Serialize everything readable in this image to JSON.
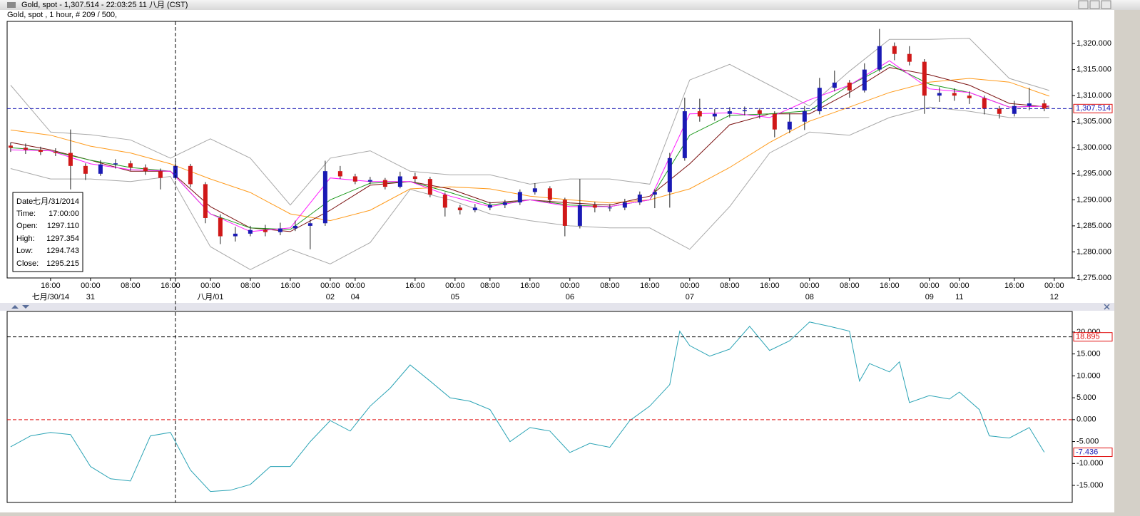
{
  "window": {
    "title": "Gold, spot - 1,307.514 - 22:03:25  11 八月 (CST)",
    "subtitle": "Gold, spot , 1 hour, # 209 / 500,"
  },
  "info_box": {
    "rows": [
      [
        "Date:",
        "七月/31/2014"
      ],
      [
        "Time:",
        "17:00:00"
      ],
      [
        "Open:",
        "1297.110"
      ],
      [
        "High:",
        "1297.354"
      ],
      [
        "Low:",
        "1294.743"
      ],
      [
        "Close:",
        "1295.215"
      ]
    ]
  },
  "chart_data": [
    {
      "type": "candlestick",
      "up_color": "#1a1ab4",
      "down_color": "#d01818",
      "xlim": [
        -0.7,
        212.6
      ],
      "ylim": [
        1275,
        1324.25
      ],
      "crosshair_x": 33,
      "xticks": [
        {
          "value": 8,
          "label": "16:00"
        },
        {
          "value": 16,
          "label": "00:00"
        },
        {
          "value": 24,
          "label": "08:00"
        },
        {
          "value": 32,
          "label": "16:00"
        },
        {
          "value": 40,
          "label": "00:00"
        },
        {
          "value": 48,
          "label": "08:00"
        },
        {
          "value": 56,
          "label": "16:00"
        },
        {
          "value": 64,
          "label": "00:00"
        },
        {
          "value": 69,
          "label": "00:00"
        },
        {
          "value": 81,
          "label": "16:00"
        },
        {
          "value": 89,
          "label": "00:00"
        },
        {
          "value": 96,
          "label": "08:00"
        },
        {
          "value": 104,
          "label": "16:00"
        },
        {
          "value": 112,
          "label": "00:00"
        },
        {
          "value": 120,
          "label": "08:00"
        },
        {
          "value": 128,
          "label": "16:00"
        },
        {
          "value": 136,
          "label": "00:00"
        },
        {
          "value": 144,
          "label": "08:00"
        },
        {
          "value": 152,
          "label": "16:00"
        },
        {
          "value": 160,
          "label": "00:00"
        },
        {
          "value": 168,
          "label": "08:00"
        },
        {
          "value": 176,
          "label": "16:00"
        },
        {
          "value": 184,
          "label": "00:00"
        },
        {
          "value": 190,
          "label": "00:00"
        },
        {
          "value": 201,
          "label": "16:00"
        },
        {
          "value": 209,
          "label": "00:00"
        }
      ],
      "xdates": [
        {
          "value": 8,
          "label": "七月/30/14"
        },
        {
          "value": 16,
          "label": "31"
        },
        {
          "value": 40,
          "label": "八月/01"
        },
        {
          "value": 64,
          "label": "02"
        },
        {
          "value": 69,
          "label": "04"
        },
        {
          "value": 89,
          "label": "05"
        },
        {
          "value": 112,
          "label": "06"
        },
        {
          "value": 136,
          "label": "07"
        },
        {
          "value": 160,
          "label": "08"
        },
        {
          "value": 184,
          "label": "09"
        },
        {
          "value": 190,
          "label": "11"
        },
        {
          "value": 209,
          "label": "12"
        }
      ],
      "yticks": [
        {
          "value": 1275,
          "label": "1,275.000"
        },
        {
          "value": 1280,
          "label": "1,280.000"
        },
        {
          "value": 1285,
          "label": "1,285.000"
        },
        {
          "value": 1290,
          "label": "1,290.000"
        },
        {
          "value": 1295,
          "label": "1,295.000"
        },
        {
          "value": 1300,
          "label": "1,300.000"
        },
        {
          "value": 1305,
          "label": "1,305.000"
        },
        {
          "value": 1310,
          "label": "1,310.000"
        },
        {
          "value": 1315,
          "label": "1,315.000"
        },
        {
          "value": 1320,
          "label": "1,320.000"
        }
      ],
      "current_price": {
        "value": 1307.514,
        "label": "1,307.514",
        "color": "#1a1ab4"
      },
      "x": [
        0,
        3,
        6,
        9,
        12,
        15,
        18,
        21,
        24,
        27,
        30,
        33,
        36,
        39,
        42,
        45,
        48,
        51,
        54,
        57,
        60,
        63,
        66,
        69,
        72,
        75,
        78,
        81,
        84,
        87,
        90,
        93,
        96,
        99,
        102,
        105,
        108,
        111,
        114,
        117,
        120,
        123,
        126,
        129,
        132,
        135,
        138,
        141,
        144,
        147,
        150,
        153,
        156,
        159,
        162,
        165,
        168,
        171,
        174,
        177,
        180,
        183,
        186,
        189,
        192,
        195,
        198,
        201,
        204,
        207
      ],
      "open": [
        1300.4,
        1300.0,
        1299.6,
        1299.2,
        1299.0,
        1296.5,
        1295.0,
        1296.8,
        1297.0,
        1296.2,
        1295.5,
        1294.2,
        1296.5,
        1293.0,
        1286.5,
        1283.0,
        1283.5,
        1284.2,
        1283.8,
        1284.5,
        1285.0,
        1285.5,
        1295.5,
        1294.5,
        1293.5,
        1293.8,
        1292.5,
        1294.5,
        1294.0,
        1291.0,
        1288.5,
        1288.0,
        1288.5,
        1289.0,
        1289.5,
        1291.5,
        1292.2,
        1290.0,
        1285.0,
        1289.0,
        1288.5,
        1288.5,
        1289.5,
        1291.0,
        1291.5,
        1298.0,
        1307.0,
        1306.0,
        1306.5,
        1307.0,
        1307.2,
        1306.5,
        1303.5,
        1305.0,
        1307.0,
        1311.5,
        1312.5,
        1311.0,
        1315.0,
        1319.5,
        1318.0,
        1316.5,
        1310.0,
        1310.5,
        1310.0,
        1309.5,
        1307.5,
        1306.5,
        1308.0,
        1308.5
      ],
      "high": [
        1301.0,
        1300.8,
        1300.2,
        1299.9,
        1303.5,
        1297.0,
        1297.6,
        1297.8,
        1297.5,
        1296.8,
        1296.0,
        1297.4,
        1296.9,
        1293.4,
        1287.2,
        1284.8,
        1285.0,
        1285.2,
        1285.6,
        1286.0,
        1286.2,
        1297.5,
        1296.5,
        1295.0,
        1294.4,
        1294.2,
        1295.4,
        1295.2,
        1294.4,
        1291.4,
        1289.0,
        1289.2,
        1289.6,
        1290.0,
        1292.0,
        1293.2,
        1292.6,
        1290.4,
        1294.0,
        1289.6,
        1289.2,
        1290.2,
        1291.6,
        1292.0,
        1299.0,
        1309.6,
        1309.4,
        1307.4,
        1307.8,
        1307.9,
        1307.6,
        1307.0,
        1306.6,
        1308.0,
        1313.4,
        1314.8,
        1313.0,
        1316.2,
        1322.8,
        1320.2,
        1319.5,
        1317.0,
        1311.6,
        1311.4,
        1310.8,
        1310.0,
        1308.0,
        1309.0,
        1311.5,
        1309.2
      ],
      "low": [
        1299.2,
        1298.8,
        1298.6,
        1298.4,
        1292.0,
        1293.8,
        1294.6,
        1296.0,
        1295.6,
        1294.8,
        1292.0,
        1293.8,
        1292.4,
        1285.5,
        1281.5,
        1282.0,
        1283.0,
        1283.0,
        1283.2,
        1284.0,
        1280.5,
        1285.0,
        1294.0,
        1293.0,
        1293.0,
        1292.0,
        1292.2,
        1293.4,
        1290.5,
        1286.8,
        1287.2,
        1287.6,
        1288.0,
        1288.4,
        1289.0,
        1291.0,
        1289.4,
        1283.0,
        1284.5,
        1287.6,
        1287.8,
        1288.0,
        1289.0,
        1288.4,
        1288.5,
        1297.5,
        1305.0,
        1305.2,
        1305.8,
        1306.2,
        1305.6,
        1302.0,
        1302.8,
        1303.4,
        1306.4,
        1310.8,
        1309.6,
        1310.6,
        1314.6,
        1316.8,
        1315.8,
        1306.5,
        1308.8,
        1309.0,
        1308.4,
        1306.4,
        1305.6,
        1306.0,
        1307.2,
        1307.0
      ],
      "close": [
        1300.0,
        1299.6,
        1299.2,
        1299.0,
        1296.5,
        1295.0,
        1296.8,
        1297.0,
        1296.2,
        1295.5,
        1294.2,
        1296.5,
        1293.0,
        1286.5,
        1283.0,
        1283.5,
        1284.2,
        1283.8,
        1284.5,
        1285.0,
        1285.5,
        1295.5,
        1294.5,
        1293.5,
        1293.8,
        1292.5,
        1294.5,
        1294.0,
        1291.0,
        1288.5,
        1288.0,
        1288.5,
        1289.0,
        1289.5,
        1291.5,
        1292.2,
        1290.0,
        1285.0,
        1289.0,
        1288.5,
        1288.5,
        1289.5,
        1291.0,
        1291.5,
        1298.0,
        1307.0,
        1306.0,
        1306.5,
        1307.0,
        1307.2,
        1306.5,
        1303.5,
        1305.0,
        1307.0,
        1311.5,
        1312.5,
        1311.0,
        1315.0,
        1319.5,
        1318.0,
        1316.5,
        1310.0,
        1310.5,
        1310.0,
        1309.5,
        1307.5,
        1306.5,
        1308.0,
        1308.5,
        1307.5
      ],
      "line_x": [
        0,
        8,
        16,
        24,
        32,
        40,
        48,
        56,
        64,
        72,
        80,
        88,
        96,
        104,
        112,
        120,
        128,
        136,
        144,
        152,
        160,
        168,
        176,
        184,
        192,
        200,
        208
      ],
      "lines": [
        {
          "color": "#a8a8a8",
          "values": [
            1312,
            1303,
            1302.5,
            1301.5,
            1298,
            1301.7,
            1298,
            1289,
            1298,
            1299.4,
            1295.5,
            1294.8,
            1294.8,
            1293,
            1294,
            1294,
            1293,
            1313,
            1316,
            1312,
            1308,
            1314.7,
            1320.8,
            1320.8,
            1321,
            1313.3,
            1311
          ]
        },
        {
          "color": "#a8a8a8",
          "values": [
            1296,
            1294,
            1294,
            1293.5,
            1294.5,
            1281,
            1276.6,
            1280.5,
            1277.7,
            1281.8,
            1292,
            1290,
            1287.3,
            1286,
            1285,
            1284.6,
            1284.6,
            1280.5,
            1288.7,
            1299,
            1303,
            1302.4,
            1305.8,
            1307.8,
            1307,
            1305.8,
            1305.8
          ]
        },
        {
          "color": "#ff9a1a",
          "values": [
            1303.4,
            1302.4,
            1300.3,
            1299,
            1296.9,
            1294,
            1291.4,
            1287.3,
            1286,
            1288,
            1292.1,
            1292.5,
            1292.1,
            1290.7,
            1290,
            1289.4,
            1290,
            1292.1,
            1296.2,
            1301,
            1305.1,
            1307.8,
            1310.6,
            1312.6,
            1313.3,
            1312.6,
            1309.9
          ]
        },
        {
          "color": "#7a1010",
          "values": [
            1301,
            1299.6,
            1297.6,
            1295.5,
            1295.5,
            1288.7,
            1284.6,
            1283.9,
            1288,
            1292.8,
            1293.5,
            1292.1,
            1289.4,
            1290,
            1289.4,
            1289,
            1290.7,
            1296.9,
            1304.4,
            1306.5,
            1306.5,
            1310.6,
            1315.4,
            1314,
            1312,
            1308.5,
            1307.8
          ]
        },
        {
          "color": "#1e9a1e",
          "values": [
            1300,
            1299.4,
            1297.6,
            1296.2,
            1295.5,
            1287.3,
            1284.6,
            1284.3,
            1290,
            1293.2,
            1293.5,
            1291.4,
            1289,
            1290,
            1289,
            1288.7,
            1290,
            1302.4,
            1306.2,
            1306.5,
            1307.1,
            1312,
            1316,
            1312.2,
            1310.6,
            1307.8,
            1308
          ]
        },
        {
          "color": "#ff1aff",
          "values": [
            1299.6,
            1299.4,
            1296.9,
            1295.8,
            1295.5,
            1287.3,
            1283.9,
            1284.6,
            1294.2,
            1293.5,
            1293.5,
            1290.7,
            1288.7,
            1290,
            1288.7,
            1288.7,
            1290,
            1306.5,
            1306.7,
            1305.8,
            1309.2,
            1312,
            1316.7,
            1311.3,
            1310.6,
            1307.8,
            1308
          ]
        }
      ]
    },
    {
      "type": "line",
      "color": "#2aa3b5",
      "xlim": [
        -0.7,
        212.6
      ],
      "ylim": [
        -18.9,
        24.7
      ],
      "yticks": [
        {
          "value": -15,
          "label": "-15.000"
        },
        {
          "value": -10,
          "label": "-10.000"
        },
        {
          "value": -5,
          "label": "-5.000"
        },
        {
          "value": 0,
          "label": "0.000"
        },
        {
          "value": 5,
          "label": "5.000"
        },
        {
          "value": 10,
          "label": "10.000"
        },
        {
          "value": 15,
          "label": "15.000"
        },
        {
          "value": 20,
          "label": "20.000"
        }
      ],
      "ref_lines": [
        {
          "value": 18.895,
          "color": "#000000",
          "boxed": true
        },
        {
          "value": 0,
          "color": "#e01010",
          "boxed": false
        }
      ],
      "last_value_box": true,
      "x": [
        0,
        4,
        8,
        12,
        16,
        20,
        24,
        28,
        32,
        36,
        40,
        44,
        48,
        52,
        56,
        60,
        64,
        68,
        72,
        76,
        80,
        84,
        88,
        92,
        96,
        100,
        104,
        108,
        112,
        116,
        120,
        124,
        128,
        132,
        134,
        136,
        140,
        144,
        148,
        152,
        156,
        160,
        164,
        168,
        170,
        172,
        176,
        178,
        180,
        184,
        188,
        190,
        194,
        196,
        200,
        204,
        207
      ],
      "values": [
        -6.2,
        -3.7,
        -2.9,
        -3.4,
        -10.7,
        -13.5,
        -14,
        -3.7,
        -2.9,
        -11.5,
        -16.4,
        -16.1,
        -14.8,
        -10.7,
        -10.7,
        -5,
        -0.2,
        -2.6,
        3.1,
        7.2,
        12.5,
        8.8,
        5,
        4.2,
        2.3,
        -5,
        -1.8,
        -2.6,
        -7.5,
        -5.4,
        -6.3,
        -0.2,
        3.1,
        8,
        20.2,
        16.9,
        14.5,
        16.1,
        21.3,
        15.8,
        18,
        22.3,
        21.3,
        20.2,
        8.8,
        12.8,
        10.9,
        13.2,
        3.9,
        5.5,
        4.7,
        6.3,
        2.3,
        -3.7,
        -4.2,
        -1.8,
        -7.436
      ]
    }
  ]
}
